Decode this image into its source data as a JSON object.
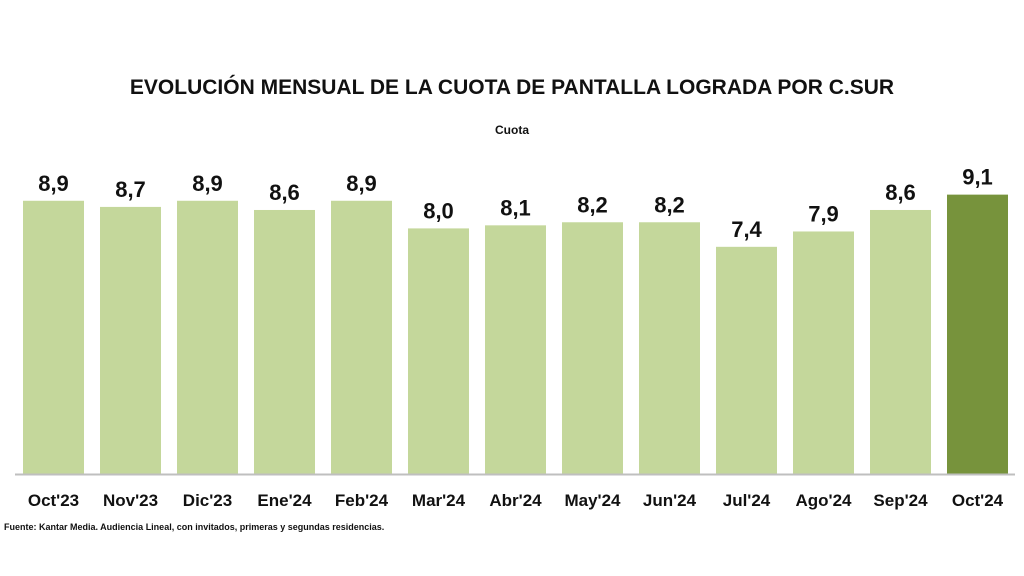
{
  "chart_data": {
    "type": "bar",
    "title": "EVOLUCIÓN MENSUAL DE LA CUOTA DE PANTALLA LOGRADA POR C.SUR",
    "subtitle": "Cuota",
    "categories": [
      "Oct'23",
      "Nov'23",
      "Dic'23",
      "Ene'24",
      "Feb'24",
      "Mar'24",
      "Abr'24",
      "May'24",
      "Jun'24",
      "Jul'24",
      "Ago'24",
      "Sep'24",
      "Oct'24"
    ],
    "values": [
      8.9,
      8.7,
      8.9,
      8.6,
      8.9,
      8.0,
      8.1,
      8.2,
      8.2,
      7.4,
      7.9,
      8.6,
      9.1
    ],
    "value_labels": [
      "8,9",
      "8,7",
      "8,9",
      "8,6",
      "8,9",
      "8,0",
      "8,1",
      "8,2",
      "8,2",
      "7,4",
      "7,9",
      "8,6",
      "9,1"
    ],
    "highlight_index": 12,
    "colors": {
      "bar": "#C4D79B",
      "highlight": "#77933C",
      "axis": "#BFBFBF"
    },
    "xlabel": "",
    "ylabel": "",
    "ylim": [
      0,
      10
    ],
    "grid": false,
    "legend": "none"
  },
  "footer": "Fuente: Kantar Media. Audiencia Lineal, con invitados, primeras y segundas residencias."
}
